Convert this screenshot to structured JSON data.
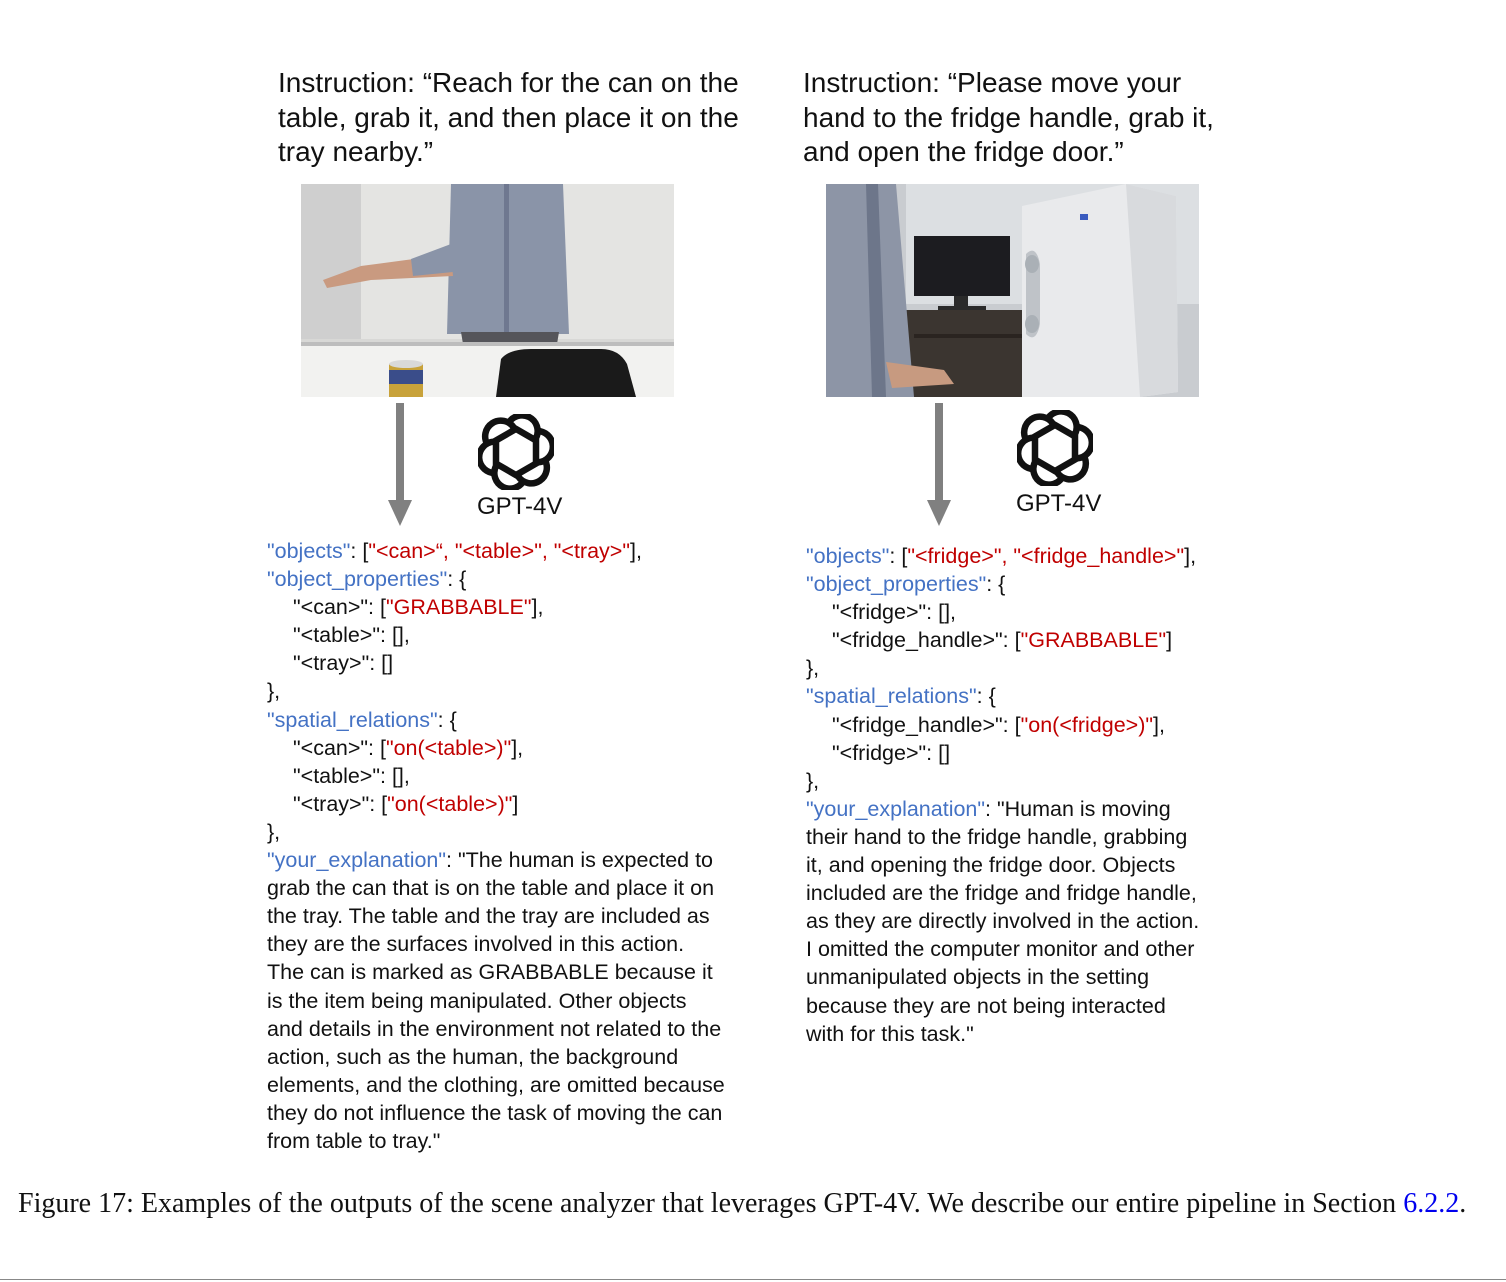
{
  "left": {
    "instruction": "Instruction: “Reach for the can on the table, grab it, and then place it on the tray nearby.”",
    "model_label": "GPT-4V",
    "json": {
      "objects_key": "\"objects\"",
      "objects_val": "\"<can>“, \"<table>\", \"<tray>\"",
      "object_properties_key": "\"object_properties\"",
      "prop_can": "\"<can>\": [",
      "prop_can_val": "\"GRABBABLE\"",
      "prop_can_end": "],",
      "prop_table": "\"<table>\": [],",
      "prop_tray": "\"<tray>\": []",
      "spatial_relations_key": "\"spatial_relations\"",
      "rel_can": "\"<can>\": [",
      "rel_can_val": "\"on(<table>)\"",
      "rel_can_end": "],",
      "rel_table": "\"<table>\": [],",
      "rel_tray": "\"<tray>\": [",
      "rel_tray_val": "\"on(<table>)\"",
      "rel_tray_end": "]",
      "explanation_key": "\"your_explanation\"",
      "explanation_lines": [
        ": \"The human is expected to",
        "grab the can that is on the table and place it on",
        "the tray. The table and the tray are included as",
        "they are the surfaces involved in this action.",
        "The can is marked as GRABBABLE because it",
        "is the item being manipulated. Other objects",
        "and details in the environment not related to the",
        "action, such as the human, the background",
        "elements, and the clothing, are omitted because",
        "they do not influence the task of moving the can",
        "from table to tray.\""
      ]
    }
  },
  "right": {
    "instruction": "Instruction: “Please move your hand to the fridge handle, grab it, and open the fridge door.”",
    "model_label": "GPT-4V",
    "json": {
      "objects_key": "\"objects\"",
      "objects_val": "\"<fridge>\", \"<fridge_handle>\"",
      "object_properties_key": "\"object_properties\"",
      "prop_fridge": "\"<fridge>\": [],",
      "prop_handle": "\"<fridge_handle>\": [",
      "prop_handle_val": "\"GRABBABLE\"",
      "prop_handle_end": "]",
      "spatial_relations_key": "\"spatial_relations\"",
      "rel_handle": "\"<fridge_handle>\": [",
      "rel_handle_val": "\"on(<fridge>)\"",
      "rel_handle_end": "],",
      "rel_fridge": "\"<fridge>\": []",
      "explanation_key": "\"your_explanation\"",
      "explanation_lines": [
        ": \"Human is moving",
        "their hand to the fridge handle, grabbing",
        "it, and opening the fridge door. Objects",
        "included are the fridge and fridge handle,",
        "as they are directly involved in the action.",
        "I omitted the computer monitor and other",
        "unmanipulated objects in the setting",
        "because they are not being interacted",
        "with for this task.\""
      ]
    }
  },
  "caption": {
    "text": "Figure 17: Examples of the outputs of the scene analyzer that leverages GPT-4V. We describe our entire pipeline in Section ",
    "ref": "6.2.2",
    "end": "."
  },
  "colors": {
    "key": "#4472c4",
    "value": "#c00000",
    "arrow": "#808080",
    "link": "#0000ee"
  }
}
